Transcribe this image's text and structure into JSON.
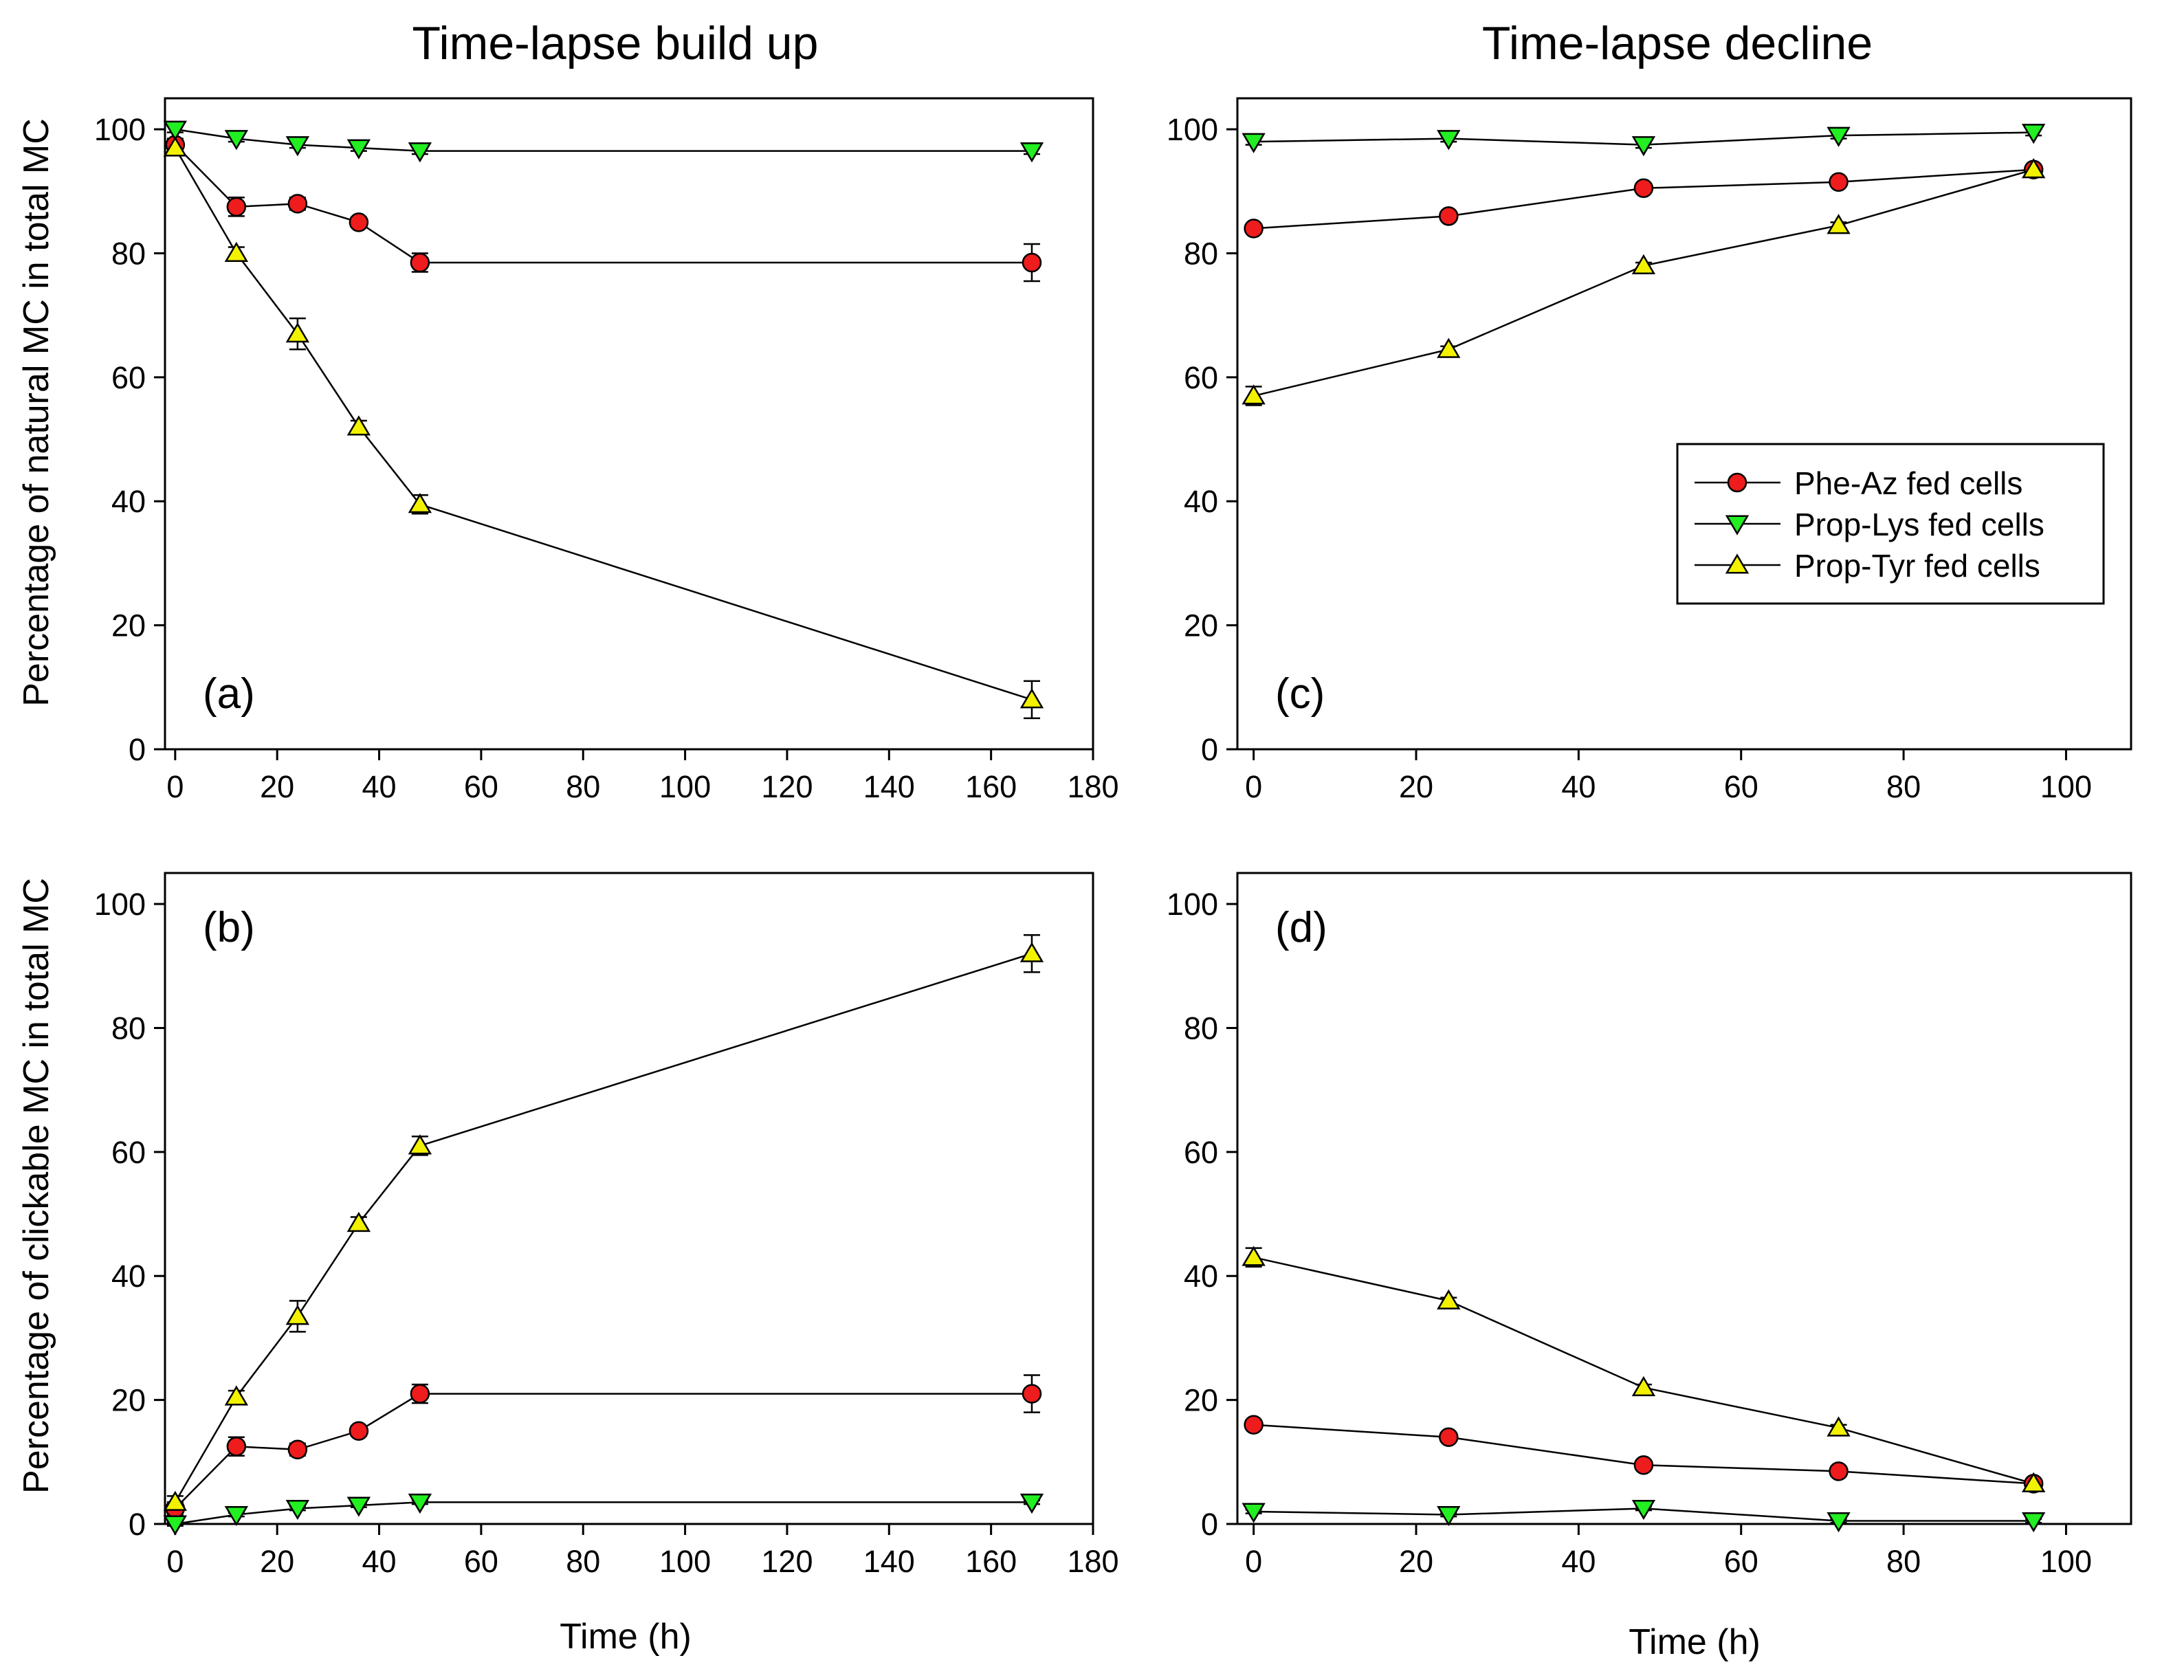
{
  "columns": {
    "left_title": "Time-lapse build up",
    "right_title": "Time-lapse decline"
  },
  "y_labels": {
    "top": "Percentage of natural MC in total MC",
    "bottom": "Percentage of clickable MC in total MC"
  },
  "x_label": "Time (h)",
  "legend": {
    "placement": "upper-right of panel (c)",
    "entries": [
      "Phe-Az fed cells",
      "Prop-Lys fed cells",
      "Prop-Tyr fed cells"
    ]
  },
  "series_styles": [
    {
      "name": "Phe-Az fed cells",
      "marker": "circle",
      "color": "#ee1c1c"
    },
    {
      "name": "Prop-Lys fed cells",
      "marker": "triangle-down",
      "color": "#22ee22"
    },
    {
      "name": "Prop-Tyr fed cells",
      "marker": "triangle-up",
      "color": "#f2f200"
    }
  ],
  "chart_data": [
    {
      "id": "a",
      "type": "line",
      "label": "(a)",
      "title": "Time-lapse build up",
      "xlabel": "",
      "ylabel": "Percentage of natural MC in total MC",
      "xlim": [
        -2,
        180
      ],
      "ylim": [
        0,
        105
      ],
      "xticks": [
        0,
        20,
        40,
        60,
        80,
        100,
        120,
        140,
        160,
        180
      ],
      "yticks": [
        0,
        20,
        40,
        60,
        80,
        100
      ],
      "x": [
        0,
        12,
        24,
        36,
        48,
        168
      ],
      "series": [
        {
          "name": "Phe-Az fed cells",
          "values": [
            97.5,
            87.5,
            88,
            85,
            78.5,
            78.5
          ],
          "errors": [
            1.0,
            1.5,
            1.0,
            0.8,
            1.5,
            3.0
          ]
        },
        {
          "name": "Prop-Lys fed cells",
          "values": [
            100,
            98.5,
            97.5,
            97,
            96.5,
            96.5
          ],
          "errors": [
            0.5,
            0.5,
            0.5,
            0.5,
            0.5,
            0.5
          ]
        },
        {
          "name": "Prop-Tyr fed cells",
          "values": [
            97,
            80,
            67,
            52,
            39.5,
            8
          ],
          "errors": [
            1.0,
            1.0,
            2.5,
            1.0,
            1.5,
            3.0
          ]
        }
      ]
    },
    {
      "id": "b",
      "type": "line",
      "label": "(b)",
      "title": "",
      "xlabel": "Time (h)",
      "ylabel": "Percentage of clickable MC in total MC",
      "xlim": [
        -2,
        180
      ],
      "ylim": [
        0,
        105
      ],
      "xticks": [
        0,
        20,
        40,
        60,
        80,
        100,
        120,
        140,
        160,
        180
      ],
      "yticks": [
        0,
        20,
        40,
        60,
        80,
        100
      ],
      "x": [
        0,
        12,
        24,
        36,
        48,
        168
      ],
      "series": [
        {
          "name": "Phe-Az fed cells",
          "values": [
            2.5,
            12.5,
            12,
            15,
            21,
            21
          ],
          "errors": [
            1.0,
            1.5,
            1.0,
            0.8,
            1.5,
            3.0
          ]
        },
        {
          "name": "Prop-Lys fed cells",
          "values": [
            0,
            1.5,
            2.5,
            3,
            3.5,
            3.5
          ],
          "errors": [
            0.3,
            0.3,
            0.3,
            0.3,
            0.3,
            0.3
          ]
        },
        {
          "name": "Prop-Tyr fed cells",
          "values": [
            3.5,
            20.5,
            33.5,
            48.5,
            61,
            92
          ],
          "errors": [
            1.0,
            1.0,
            2.5,
            1.0,
            1.5,
            3.0
          ]
        }
      ]
    },
    {
      "id": "c",
      "type": "line",
      "label": "(c)",
      "title": "Time-lapse decline",
      "xlabel": "",
      "ylabel": "",
      "xlim": [
        -2,
        108
      ],
      "ylim": [
        0,
        105
      ],
      "xticks": [
        0,
        20,
        40,
        60,
        80,
        100
      ],
      "yticks": [
        0,
        20,
        40,
        60,
        80,
        100
      ],
      "x": [
        0,
        24,
        48,
        72,
        96
      ],
      "series": [
        {
          "name": "Phe-Az fed cells",
          "values": [
            84,
            86,
            90.5,
            91.5,
            93.5
          ],
          "errors": [
            0.5,
            0.5,
            0.5,
            0.5,
            0.5
          ]
        },
        {
          "name": "Prop-Lys fed cells",
          "values": [
            98,
            98.5,
            97.5,
            99,
            99.5
          ],
          "errors": [
            0.5,
            0.5,
            0.5,
            0.5,
            0.5
          ]
        },
        {
          "name": "Prop-Tyr fed cells",
          "values": [
            57,
            64.5,
            78,
            84.5,
            93.5
          ],
          "errors": [
            1.5,
            0.5,
            0.5,
            0.5,
            0.5
          ]
        }
      ]
    },
    {
      "id": "d",
      "type": "line",
      "label": "(d)",
      "title": "",
      "xlabel": "Time (h)",
      "ylabel": "",
      "xlim": [
        -2,
        108
      ],
      "ylim": [
        0,
        105
      ],
      "xticks": [
        0,
        20,
        40,
        60,
        80,
        100
      ],
      "yticks": [
        0,
        20,
        40,
        60,
        80,
        100
      ],
      "x": [
        0,
        24,
        48,
        72,
        96
      ],
      "series": [
        {
          "name": "Phe-Az fed cells",
          "values": [
            16,
            14,
            9.5,
            8.5,
            6.5
          ],
          "errors": [
            0.5,
            0.5,
            0.5,
            0.8,
            0.5
          ]
        },
        {
          "name": "Prop-Lys fed cells",
          "values": [
            2,
            1.5,
            2.5,
            0.5,
            0.5
          ],
          "errors": [
            0.3,
            0.3,
            0.3,
            0.3,
            0.3
          ]
        },
        {
          "name": "Prop-Tyr fed cells",
          "values": [
            43,
            36,
            22,
            15.5,
            6.5
          ],
          "errors": [
            1.5,
            0.5,
            0.5,
            0.5,
            0.5
          ]
        }
      ]
    }
  ]
}
